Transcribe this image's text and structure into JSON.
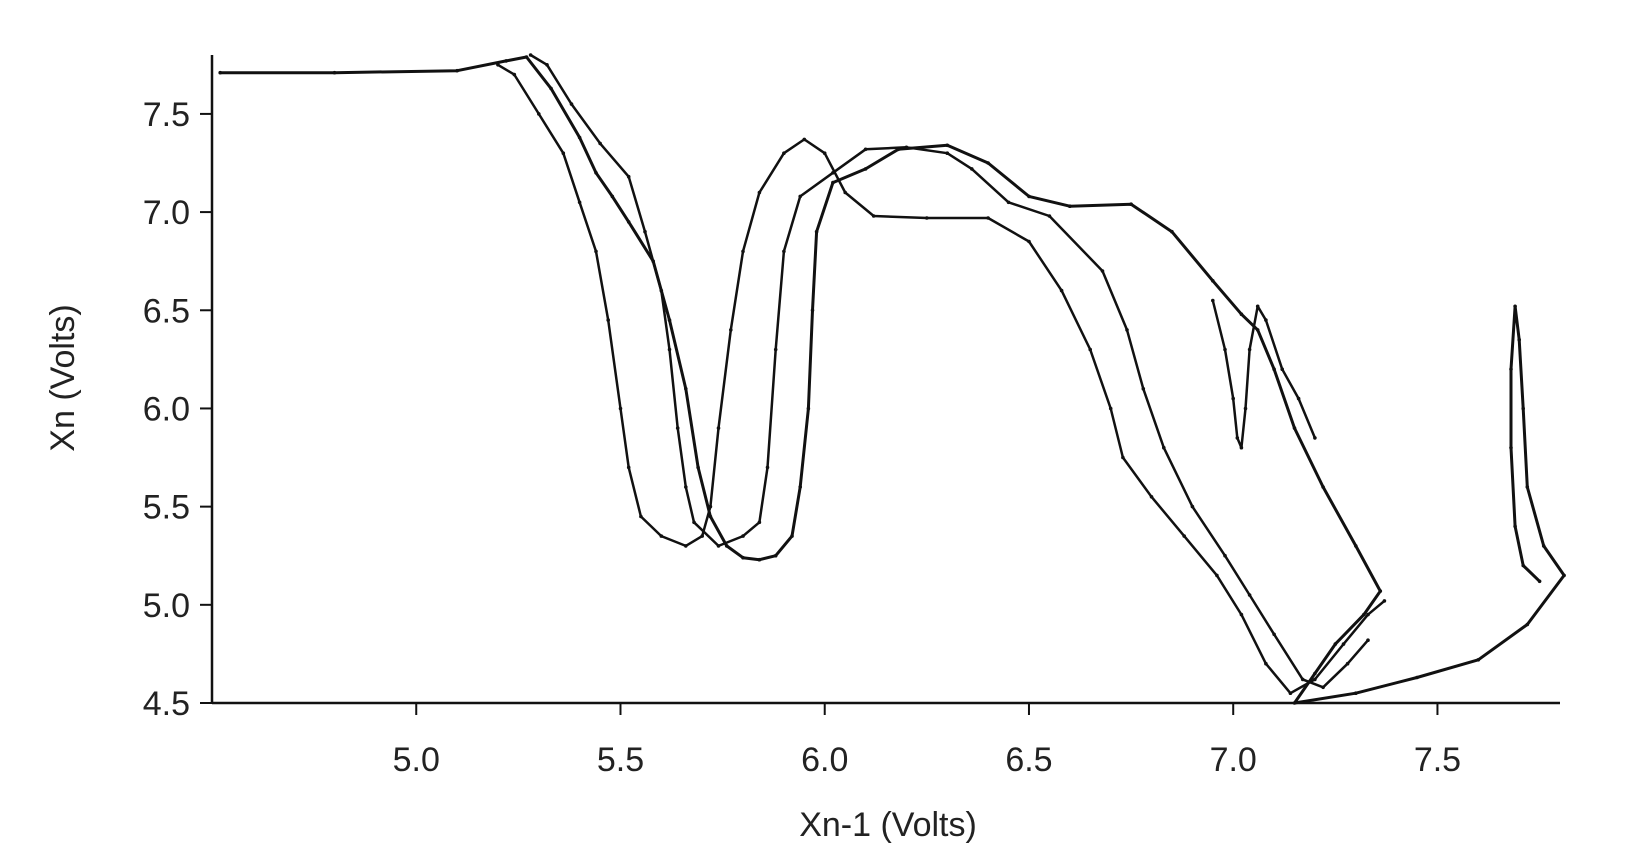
{
  "chart_data": {
    "type": "line",
    "title": "",
    "xlabel": "Xn-1 (Volts)",
    "ylabel": "Xn (Volts)",
    "xlim": [
      4.5,
      7.8
    ],
    "ylim": [
      4.5,
      7.8
    ],
    "xticks": [
      "5.0",
      "5.5",
      "6.0",
      "6.5",
      "7.0",
      "7.5"
    ],
    "yticks": [
      "4.5",
      "5.0",
      "5.5",
      "6.0",
      "6.5",
      "7.0",
      "7.5"
    ],
    "grid": false,
    "color": "#111111",
    "series": [
      {
        "values": [
          [
            4.52,
            7.71
          ],
          [
            4.8,
            7.71
          ],
          [
            5.1,
            7.72
          ],
          [
            5.22,
            7.77
          ],
          [
            5.27,
            7.79
          ],
          [
            5.33,
            7.63
          ],
          [
            5.4,
            7.38
          ],
          [
            5.44,
            7.2
          ],
          [
            5.48,
            7.08
          ],
          [
            5.52,
            6.95
          ],
          [
            5.58,
            6.75
          ],
          [
            5.62,
            6.45
          ],
          [
            5.66,
            6.1
          ],
          [
            5.69,
            5.7
          ],
          [
            5.72,
            5.45
          ],
          [
            5.76,
            5.3
          ],
          [
            5.8,
            5.24
          ],
          [
            5.84,
            5.23
          ],
          [
            5.88,
            5.25
          ],
          [
            5.92,
            5.35
          ],
          [
            5.94,
            5.6
          ],
          [
            5.96,
            6.0
          ],
          [
            5.97,
            6.5
          ],
          [
            5.98,
            6.9
          ],
          [
            6.02,
            7.15
          ],
          [
            6.1,
            7.22
          ],
          [
            6.18,
            7.32
          ],
          [
            6.3,
            7.34
          ],
          [
            6.4,
            7.25
          ],
          [
            6.5,
            7.08
          ],
          [
            6.6,
            7.03
          ],
          [
            6.75,
            7.04
          ],
          [
            6.85,
            6.9
          ],
          [
            6.95,
            6.65
          ],
          [
            7.02,
            6.48
          ],
          [
            7.06,
            6.4
          ],
          [
            7.1,
            6.2
          ],
          [
            7.15,
            5.9
          ],
          [
            7.22,
            5.6
          ],
          [
            7.3,
            5.3
          ],
          [
            7.36,
            5.07
          ],
          [
            7.32,
            4.95
          ],
          [
            7.25,
            4.8
          ],
          [
            7.2,
            4.65
          ],
          [
            7.15,
            4.5
          ],
          [
            7.3,
            4.55
          ],
          [
            7.45,
            4.63
          ],
          [
            7.6,
            4.72
          ],
          [
            7.72,
            4.9
          ],
          [
            7.81,
            5.15
          ],
          [
            7.76,
            5.3
          ],
          [
            7.72,
            5.6
          ],
          [
            7.71,
            6.0
          ],
          [
            7.7,
            6.35
          ],
          [
            7.69,
            6.52
          ],
          [
            7.68,
            6.2
          ],
          [
            7.68,
            5.8
          ],
          [
            7.69,
            5.4
          ],
          [
            7.71,
            5.2
          ],
          [
            7.75,
            5.12
          ]
        ]
      },
      {
        "values": [
          [
            5.2,
            7.75
          ],
          [
            5.24,
            7.7
          ],
          [
            5.3,
            7.5
          ],
          [
            5.36,
            7.3
          ],
          [
            5.4,
            7.05
          ],
          [
            5.44,
            6.8
          ],
          [
            5.47,
            6.45
          ],
          [
            5.5,
            6.0
          ],
          [
            5.52,
            5.7
          ],
          [
            5.55,
            5.45
          ],
          [
            5.6,
            5.35
          ],
          [
            5.66,
            5.3
          ],
          [
            5.7,
            5.35
          ],
          [
            5.72,
            5.5
          ],
          [
            5.74,
            5.9
          ],
          [
            5.77,
            6.4
          ],
          [
            5.8,
            6.8
          ],
          [
            5.84,
            7.1
          ],
          [
            5.9,
            7.3
          ],
          [
            5.95,
            7.37
          ],
          [
            6.0,
            7.3
          ],
          [
            6.05,
            7.1
          ],
          [
            6.12,
            6.98
          ],
          [
            6.25,
            6.97
          ],
          [
            6.4,
            6.97
          ],
          [
            6.5,
            6.85
          ],
          [
            6.58,
            6.6
          ],
          [
            6.65,
            6.3
          ],
          [
            6.7,
            6.0
          ],
          [
            6.73,
            5.75
          ],
          [
            6.8,
            5.55
          ],
          [
            6.88,
            5.35
          ],
          [
            6.96,
            5.15
          ],
          [
            7.02,
            4.95
          ],
          [
            7.08,
            4.7
          ],
          [
            7.14,
            4.55
          ],
          [
            7.2,
            4.62
          ],
          [
            7.27,
            4.8
          ],
          [
            7.33,
            4.95
          ],
          [
            7.37,
            5.02
          ]
        ]
      },
      {
        "values": [
          [
            5.28,
            7.8
          ],
          [
            5.32,
            7.75
          ],
          [
            5.38,
            7.55
          ],
          [
            5.45,
            7.35
          ],
          [
            5.52,
            7.18
          ],
          [
            5.56,
            6.9
          ],
          [
            5.6,
            6.6
          ],
          [
            5.62,
            6.3
          ],
          [
            5.64,
            5.9
          ],
          [
            5.66,
            5.6
          ],
          [
            5.68,
            5.42
          ],
          [
            5.74,
            5.3
          ],
          [
            5.8,
            5.35
          ],
          [
            5.84,
            5.42
          ],
          [
            5.86,
            5.7
          ],
          [
            5.88,
            6.3
          ],
          [
            5.9,
            6.8
          ],
          [
            5.94,
            7.08
          ],
          [
            6.02,
            7.2
          ],
          [
            6.1,
            7.32
          ],
          [
            6.2,
            7.33
          ],
          [
            6.3,
            7.3
          ],
          [
            6.36,
            7.22
          ],
          [
            6.45,
            7.05
          ],
          [
            6.55,
            6.98
          ],
          [
            6.68,
            6.7
          ],
          [
            6.74,
            6.4
          ],
          [
            6.78,
            6.1
          ],
          [
            6.83,
            5.8
          ],
          [
            6.9,
            5.5
          ],
          [
            6.98,
            5.25
          ],
          [
            7.04,
            5.05
          ],
          [
            7.1,
            4.85
          ],
          [
            7.17,
            4.62
          ],
          [
            7.22,
            4.58
          ],
          [
            7.28,
            4.7
          ],
          [
            7.33,
            4.82
          ]
        ]
      },
      {
        "values": [
          [
            6.95,
            6.55
          ],
          [
            6.98,
            6.3
          ],
          [
            7.0,
            6.05
          ],
          [
            7.01,
            5.85
          ],
          [
            7.02,
            5.8
          ],
          [
            7.03,
            6.0
          ],
          [
            7.04,
            6.3
          ],
          [
            7.06,
            6.52
          ],
          [
            7.08,
            6.45
          ],
          [
            7.12,
            6.2
          ],
          [
            7.16,
            6.05
          ],
          [
            7.2,
            5.85
          ]
        ]
      }
    ]
  }
}
